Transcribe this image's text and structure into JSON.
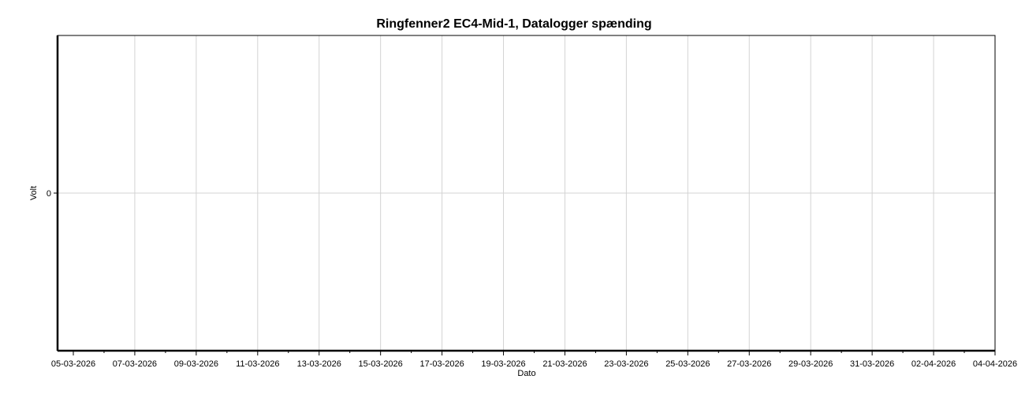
{
  "chart_data": {
    "type": "line",
    "title": "Ringfenner2 EC4-Mid-1, Datalogger spænding",
    "xlabel": "Dato",
    "ylabel": "Volt",
    "x_tick_labels": [
      "05-03-2026",
      "07-03-2026",
      "09-03-2026",
      "11-03-2026",
      "13-03-2026",
      "15-03-2026",
      "17-03-2026",
      "19-03-2026",
      "21-03-2026",
      "23-03-2026",
      "25-03-2026",
      "27-03-2026",
      "29-03-2026",
      "31-03-2026",
      "02-04-2026",
      "04-04-2026"
    ],
    "xlim": [
      "05-03-2026",
      "04-04-2026"
    ],
    "y_ticks": [
      0
    ],
    "y_tick_labels": [
      "0"
    ],
    "ylim": [
      -1,
      1
    ],
    "series": [],
    "grid": true,
    "legend": "none"
  },
  "colors": {
    "background": "#ffffff",
    "grid": "#d3d3d3",
    "axis": "#000000",
    "frame": "#000000"
  }
}
